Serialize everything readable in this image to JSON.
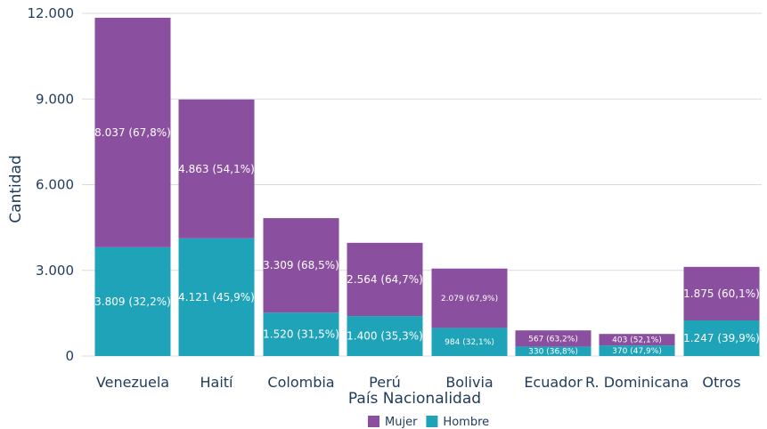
{
  "chart_data": {
    "type": "bar",
    "stacked": true,
    "xlabel": "País Nacionalidad",
    "ylabel": "Cantidad",
    "ylim": [
      0,
      12000
    ],
    "yticks": [
      0,
      3000,
      6000,
      9000,
      12000
    ],
    "ytick_labels": [
      "0",
      "3.000",
      "6.000",
      "9.000",
      "12.000"
    ],
    "grid": true,
    "legend_position": "bottom",
    "categories": [
      "Venezuela",
      "Haití",
      "Colombia",
      "Perú",
      "Bolivia",
      "Ecuador",
      "R. Dominicana",
      "Otros"
    ],
    "series": [
      {
        "name": "Hombre",
        "color": "#1fa3b8",
        "values": [
          3809,
          4121,
          1520,
          1400,
          984,
          330,
          370,
          1247
        ],
        "labels": [
          "3.809 (32,2%)",
          "4.121 (45,9%)",
          "1.520 (31,5%)",
          "1.400 (35,3%)",
          "984 (32,1%)",
          "330 (36,8%)",
          "370 (47,9%)",
          "1.247 (39,9%)"
        ]
      },
      {
        "name": "Mujer",
        "color": "#8a4f9e",
        "values": [
          8037,
          4863,
          3309,
          2564,
          2079,
          567,
          403,
          1875
        ],
        "labels": [
          "8.037 (67,8%)",
          "4.863 (54,1%)",
          "3.309 (68,5%)",
          "2.564 (64,7%)",
          "2.079 (67,9%)",
          "567 (63,2%)",
          "403 (52,1%)",
          "1.875 (60,1%)"
        ]
      }
    ],
    "legend_order": [
      "Mujer",
      "Hombre"
    ],
    "colors": {
      "grid": "#d7dbe0",
      "axis_text": "#1f3a5a",
      "label_text": "#ffffff"
    }
  }
}
